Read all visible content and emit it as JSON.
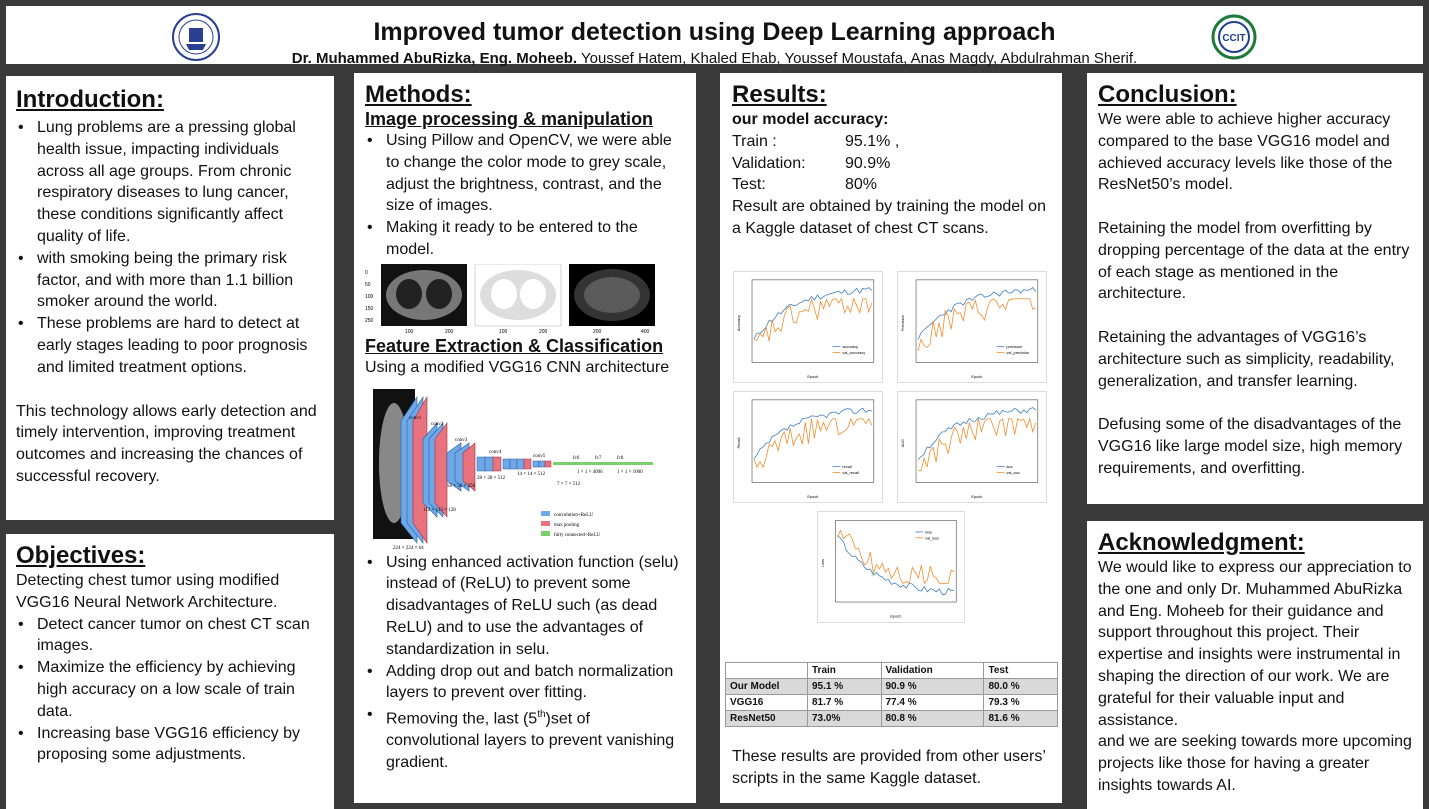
{
  "header": {
    "title": "Improved tumor detection using Deep Learning approach",
    "authors_bold": "Dr. Muhammed AbuRizka, Eng. Moheeb.",
    "authors_rest": " Youssef Hatem, Khaled Ehab, Youssef Moustafa, Anas Magdy, Abdulrahman Sherif.",
    "right_logo_text": "CCIT"
  },
  "introduction": {
    "heading": "Introduction:",
    "bullets": [
      "Lung problems are a pressing global health issue, impacting individuals across all age groups. From chronic respiratory diseases to lung cancer, these conditions significantly affect quality of life.",
      "with smoking being the primary risk factor, and with more than 1.1 billion smoker around the world.",
      "These problems are hard to detect at early stages leading to poor prognosis and limited treatment options."
    ],
    "paragraph": "This technology allows early detection and timely intervention, improving treatment outcomes and increasing the chances of successful recovery."
  },
  "objectives": {
    "heading": "Objectives:",
    "lead": "Detecting chest tumor using modified VGG16 Neural Network Architecture.",
    "bullets": [
      "Detect cancer tumor on chest CT scan images.",
      "Maximize the efficiency by achieving high accuracy on a low scale of train data.",
      "Increasing base VGG16 efficiency by proposing some adjustments."
    ]
  },
  "methods": {
    "heading": "Methods:",
    "sub1": "Image processing & manipulation",
    "bullets1": [
      "Using Pillow and OpenCV, we were able to change the color mode to grey scale, adjust the brightness, contrast, and the size of images.",
      "Making it ready to be entered to the model."
    ],
    "sub2": "Feature Extraction & Classification",
    "sub2_text": "Using a modified VGG16 CNN architecture",
    "bullet_selu_a": "Using enhanced activation function (selu) instead of (ReLU) to prevent some disadvantages of ReLU such (as dead ReLU) and to use the advantages of standardization in selu.",
    "bullet_dropout": "Adding drop out and batch normalization layers to prevent over fitting.",
    "bullet_remove_a": "Removing the, last (5",
    "bullet_remove_sup": "th",
    "bullet_remove_b": ")set of convolutional layers to prevent vanishing gradient.",
    "ct_ticks": [
      "0",
      "50",
      "100",
      "150",
      "200",
      "250",
      "300",
      "400"
    ],
    "arch_labels": {
      "conv1": "conv1",
      "conv2": "conv2",
      "conv3": "conv3",
      "conv4": "conv4",
      "conv5": "conv5",
      "fc6": "fc6",
      "fc7": "fc7",
      "fc8": "fc8",
      "d224": "224 × 224 × 64",
      "d112": "112 × 112 × 128",
      "d56": "56 × 56 × 256",
      "d28": "28 × 28 × 512",
      "d14": "14 × 14 × 512",
      "d7": "7 × 7 × 512",
      "d4096": "1 × 1 × 4096",
      "d1000": "1 × 1 × 1000",
      "leg1": "convolution+ReLU",
      "leg2": "max pooling",
      "leg3": "fully connected+ReLU"
    },
    "colors": {
      "conv": "#6fa8e8",
      "pool": "#e8737f",
      "fc": "#7ccf6e"
    }
  },
  "results": {
    "heading": "Results:",
    "acc_title": "our model accuracy:",
    "acc": [
      {
        "k": "Train :",
        "v": "95.1% ,"
      },
      {
        "k": "Validation:",
        "v": "90.9%"
      },
      {
        "k": "Test:",
        "v": "80%"
      }
    ],
    "desc": "Result are obtained by training the model on a Kaggle dataset of chest CT scans.",
    "plots": [
      {
        "ylabel": "Accuracy",
        "xlabel": "Epoch",
        "legend": [
          "accuracy",
          "val_accuracy"
        ]
      },
      {
        "ylabel": "Precision",
        "xlabel": "Epoch",
        "legend": [
          "precision",
          "val_precision"
        ]
      },
      {
        "ylabel": "Recall",
        "xlabel": "Epoch",
        "legend": [
          "recall",
          "val_recall"
        ]
      },
      {
        "ylabel": "AUC",
        "xlabel": "Epoch",
        "legend": [
          "auc",
          "val_auc"
        ]
      },
      {
        "ylabel": "Loss",
        "xlabel": "Epoch",
        "legend": [
          "loss",
          "val_loss"
        ]
      }
    ],
    "table": {
      "header": [
        "",
        "Train",
        "Validation",
        "Test"
      ],
      "rows": [
        [
          "Our Model",
          "95.1 %",
          "90.9 %",
          "80.0 %"
        ],
        [
          "VGG16",
          "81.7 %",
          "77.4 %",
          "79.3 %"
        ],
        [
          "ResNet50",
          "73.0%",
          "80.8 %",
          "81.6 %"
        ]
      ]
    },
    "footer": "These results are provided from other users’ scripts in the same Kaggle dataset.",
    "colors": {
      "train": "#3b7dc4",
      "val": "#f28c28"
    }
  },
  "conclusion": {
    "heading": "Conclusion:",
    "paras": [
      "We were able to achieve higher accuracy compared to the base VGG16 model and achieved accuracy levels like those of the ResNet50’s model.",
      "Retaining the model from overfitting by dropping percentage of the data at the entry of each stage as mentioned in the architecture.",
      "Retaining the advantages of VGG16’s architecture such as simplicity, readability, generalization, and transfer learning.",
      "Defusing some of the disadvantages of the VGG16 like large model size, high memory requirements, and overfitting."
    ]
  },
  "acknowledgment": {
    "heading": "Acknowledgment:",
    "p1": "We would like to express our appreciation to the one and only Dr. Muhammed AbuRizka and Eng. Moheeb for their guidance and support throughout this project. Their expertise and insights were instrumental in shaping the direction of our work. We are grateful for their valuable input and assistance.",
    "p2": "and we are seeking towards more upcoming projects like those for having a greater insights towards AI."
  }
}
